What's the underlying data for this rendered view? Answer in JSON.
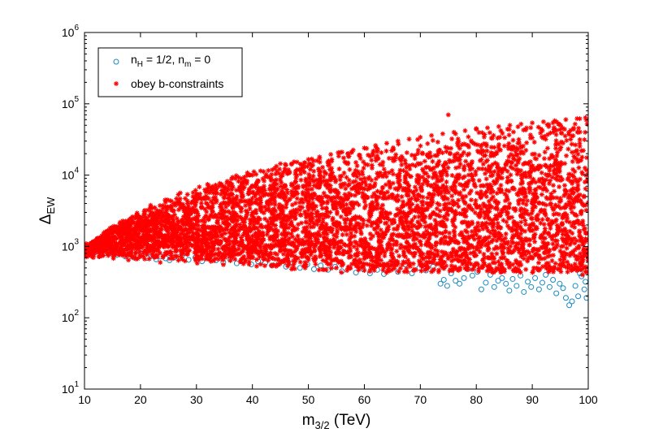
{
  "chart_data": {
    "type": "scatter",
    "xlabel": "m",
    "xlabel_sub": "3/2",
    "xlabel_unit": " (TeV)",
    "ylabel": "Δ",
    "ylabel_sub": "EW",
    "xlim": [
      10,
      100
    ],
    "ylim": [
      10,
      1000000
    ],
    "yscale": "log",
    "grid": false,
    "legend_position": "top-left",
    "x_ticks": [
      "10",
      "20",
      "30",
      "40",
      "50",
      "60",
      "70",
      "80",
      "90",
      "100"
    ],
    "y_ticks": [
      {
        "base": "10",
        "exp": "1"
      },
      {
        "base": "10",
        "exp": "2"
      },
      {
        "base": "10",
        "exp": "3"
      },
      {
        "base": "10",
        "exp": "4"
      },
      {
        "base": "10",
        "exp": "5"
      },
      {
        "base": "10",
        "exp": "6"
      }
    ],
    "series": [
      {
        "name": "nH = 1/2, nm = 0",
        "legend_parts": [
          {
            "t": "n"
          },
          {
            "t": "H",
            "sub": true
          },
          {
            "t": " = 1/2, n"
          },
          {
            "t": "m",
            "sub": true
          },
          {
            "t": " = 0"
          }
        ],
        "marker": "circle",
        "color": "#1a8ac0",
        "points": [
          [
            10.2,
            820
          ],
          [
            10.8,
            870
          ],
          [
            11.5,
            900
          ],
          [
            12.1,
            850
          ],
          [
            12.8,
            830
          ],
          [
            13.5,
            880
          ],
          [
            14.2,
            810
          ],
          [
            15.0,
            790
          ],
          [
            15.8,
            760
          ],
          [
            16.5,
            840
          ],
          [
            17.3,
            720
          ],
          [
            18.0,
            780
          ],
          [
            18.8,
            700
          ],
          [
            19.5,
            760
          ],
          [
            20.3,
            800
          ],
          [
            21.2,
            690
          ],
          [
            22.0,
            740
          ],
          [
            22.8,
            660
          ],
          [
            23.6,
            720
          ],
          [
            24.5,
            680
          ],
          [
            25.2,
            640
          ],
          [
            26.0,
            700
          ],
          [
            27.5,
            760
          ],
          [
            28.6,
            650
          ],
          [
            29.8,
            700
          ],
          [
            31.0,
            620
          ],
          [
            32.3,
            680
          ],
          [
            33.5,
            640
          ],
          [
            34.8,
            600
          ],
          [
            36.0,
            660
          ],
          [
            37.2,
            580
          ],
          [
            38.5,
            640
          ],
          [
            39.8,
            560
          ],
          [
            41.0,
            620
          ],
          [
            42.3,
            590
          ],
          [
            43.5,
            540
          ],
          [
            44.8,
            600
          ],
          [
            46.0,
            520
          ],
          [
            47.2,
            580
          ],
          [
            48.5,
            500
          ],
          [
            49.8,
            560
          ],
          [
            51.0,
            480
          ],
          [
            52.2,
            540
          ],
          [
            53.5,
            470
          ],
          [
            54.8,
            520
          ],
          [
            56.0,
            450
          ],
          [
            57.3,
            500
          ],
          [
            58.5,
            430
          ],
          [
            59.8,
            480
          ],
          [
            61.0,
            420
          ],
          [
            62.3,
            470
          ],
          [
            63.5,
            410
          ],
          [
            64.8,
            520
          ],
          [
            66.0,
            440
          ],
          [
            67.3,
            560
          ],
          [
            68.5,
            420
          ],
          [
            69.8,
            500
          ],
          [
            71.0,
            460
          ],
          [
            72.3,
            520
          ],
          [
            73.6,
            300
          ],
          [
            74.2,
            340
          ],
          [
            74.8,
            280
          ],
          [
            75.5,
            420
          ],
          [
            76.3,
            330
          ],
          [
            77.0,
            300
          ],
          [
            77.8,
            360
          ],
          [
            78.5,
            480
          ],
          [
            79.3,
            390
          ],
          [
            80.2,
            440
          ],
          [
            80.9,
            250
          ],
          [
            81.7,
            310
          ],
          [
            82.5,
            400
          ],
          [
            83.2,
            270
          ],
          [
            83.9,
            330
          ],
          [
            84.6,
            360
          ],
          [
            85.3,
            300
          ],
          [
            85.9,
            240
          ],
          [
            86.5,
            350
          ],
          [
            87.2,
            280
          ],
          [
            87.9,
            390
          ],
          [
            88.5,
            230
          ],
          [
            89.2,
            320
          ],
          [
            89.8,
            270
          ],
          [
            90.5,
            360
          ],
          [
            91.2,
            250
          ],
          [
            91.8,
            310
          ],
          [
            92.4,
            400
          ],
          [
            93.1,
            270
          ],
          [
            93.7,
            340
          ],
          [
            94.3,
            220
          ],
          [
            94.9,
            300
          ],
          [
            95.5,
            260
          ],
          [
            96.0,
            190
          ],
          [
            96.6,
            150
          ],
          [
            97.1,
            170
          ],
          [
            97.7,
            280
          ],
          [
            98.2,
            200
          ],
          [
            98.8,
            380
          ],
          [
            99.3,
            250
          ],
          [
            99.7,
            190
          ],
          [
            99.5,
            320
          ],
          [
            98.5,
            420
          ]
        ]
      },
      {
        "name": "obey b-constraints",
        "legend_parts": [
          {
            "t": "obey b-constraints"
          }
        ],
        "marker": "star",
        "color": "#ff0000",
        "points": [
          [
            10.5,
            950
          ],
          [
            12.0,
            1100
          ],
          [
            14.0,
            1300
          ],
          [
            16.0,
            1600
          ],
          [
            18.0,
            2000
          ],
          [
            20.0,
            2400
          ],
          [
            22.0,
            2800
          ],
          [
            24.0,
            3400
          ],
          [
            26.0,
            4000
          ],
          [
            28.0,
            4700
          ],
          [
            30.0,
            5400
          ],
          [
            32.0,
            6100
          ],
          [
            34.0,
            7000
          ],
          [
            36.0,
            7900
          ],
          [
            38.0,
            8900
          ],
          [
            40.0,
            10000
          ],
          [
            42.0,
            11200
          ],
          [
            44.0,
            12500
          ],
          [
            46.0,
            13800
          ],
          [
            48.0,
            15200
          ],
          [
            50.0,
            16600
          ],
          [
            52.0,
            18000
          ],
          [
            54.0,
            19500
          ],
          [
            56.0,
            21000
          ],
          [
            58.0,
            22500
          ],
          [
            60.0,
            24000
          ],
          [
            62.0,
            26000
          ],
          [
            64.0,
            28000
          ],
          [
            66.0,
            30000
          ],
          [
            68.0,
            32000
          ],
          [
            70.0,
            34000
          ],
          [
            72.0,
            36000
          ],
          [
            74.0,
            38000
          ],
          [
            76.0,
            40000
          ],
          [
            78.0,
            42000
          ],
          [
            80.0,
            44000
          ],
          [
            82.0,
            46000
          ],
          [
            84.0,
            48000
          ],
          [
            86.0,
            50000
          ],
          [
            88.0,
            52000
          ],
          [
            90.0,
            54000
          ],
          [
            92.0,
            56000
          ],
          [
            94.0,
            58000
          ],
          [
            96.0,
            60000
          ],
          [
            98.0,
            62000
          ],
          [
            99.5,
            64000
          ],
          [
            15.0,
            1000
          ],
          [
            20.0,
            1050
          ],
          [
            25.0,
            1000
          ],
          [
            30.0,
            950
          ],
          [
            35.0,
            980
          ],
          [
            40.0,
            900
          ],
          [
            45.0,
            880
          ],
          [
            50.0,
            850
          ],
          [
            55.0,
            820
          ],
          [
            60.0,
            800
          ],
          [
            65.0,
            780
          ],
          [
            70.0,
            750
          ],
          [
            75.0,
            720
          ],
          [
            80.0,
            750
          ],
          [
            85.0,
            700
          ],
          [
            90.0,
            680
          ],
          [
            95.0,
            650
          ],
          [
            99.0,
            620
          ],
          [
            55.0,
            500
          ],
          [
            60.0,
            460
          ],
          [
            68.0,
            550
          ],
          [
            72.0,
            600
          ],
          [
            88.0,
            550
          ],
          [
            94.0,
            500
          ],
          [
            97.0,
            460
          ],
          [
            99.5,
            440
          ],
          [
            99.0,
            400
          ],
          [
            100.0,
            700
          ],
          [
            75.0,
            70000
          ],
          [
            80.0,
            45000
          ]
        ]
      }
    ]
  }
}
